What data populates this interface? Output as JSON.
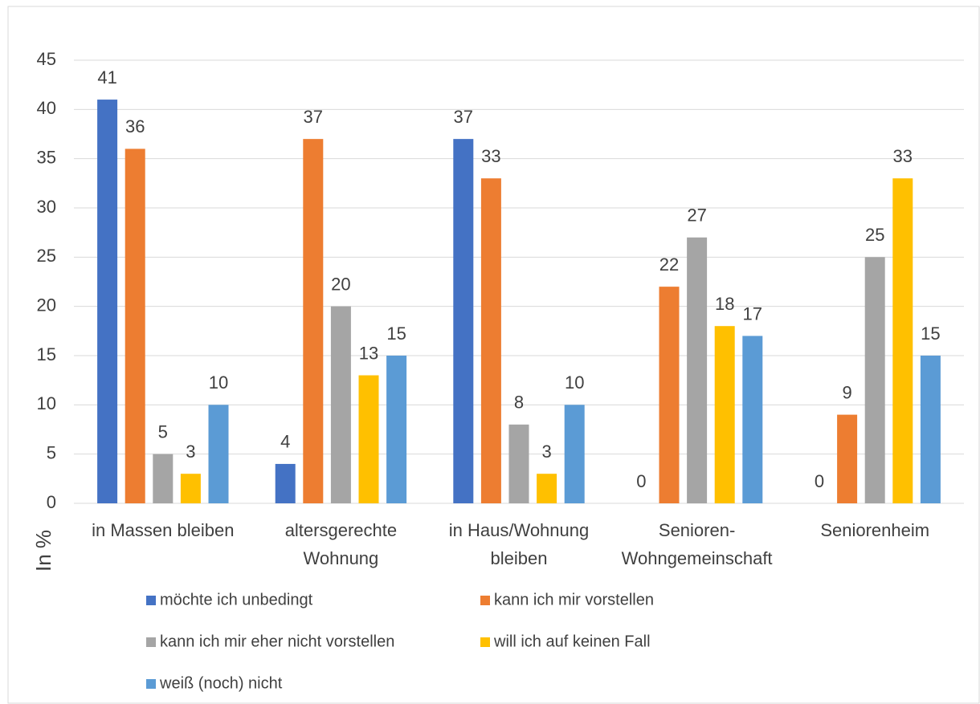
{
  "chart_data": {
    "type": "bar",
    "y_label": "In %",
    "categories": [
      [
        "in Massen bleiben"
      ],
      [
        "altersgerechte",
        "Wohnung"
      ],
      [
        "in Haus/Wohnung",
        "bleiben"
      ],
      [
        "Senioren-",
        "Wohngemeinschaft"
      ],
      [
        "Seniorenheim"
      ]
    ],
    "series": [
      {
        "name": "möchte ich unbedingt",
        "color": "#4472c4",
        "values": [
          41,
          4,
          37,
          0,
          0
        ]
      },
      {
        "name": "kann ich mir vorstellen",
        "color": "#ed7d31",
        "values": [
          36,
          37,
          33,
          22,
          9
        ]
      },
      {
        "name": "kann ich mir eher nicht vorstellen",
        "color": "#a5a5a5",
        "values": [
          5,
          20,
          8,
          27,
          25
        ]
      },
      {
        "name": "will ich auf keinen Fall",
        "color": "#ffc000",
        "values": [
          3,
          13,
          3,
          18,
          33
        ]
      },
      {
        "name": "weiß (noch) nicht",
        "color": "#5b9bd5",
        "values": [
          10,
          15,
          10,
          17,
          15
        ]
      }
    ],
    "ylim": [
      0,
      45
    ],
    "yticks": [
      0,
      5,
      10,
      15,
      20,
      25,
      30,
      35,
      40,
      45
    ],
    "grid": true,
    "legend": "bottom"
  }
}
